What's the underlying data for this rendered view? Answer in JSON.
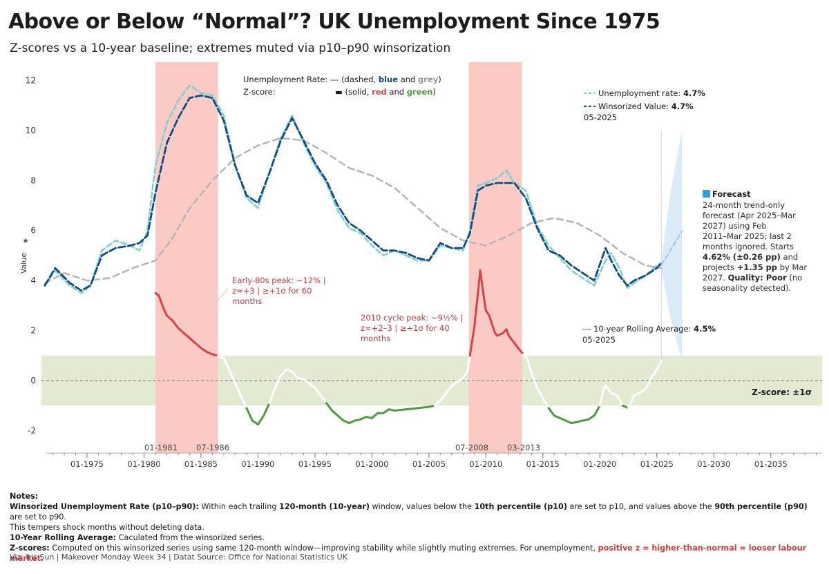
{
  "title": "Above or Below “Normal”? UK Unemployment Since 1975",
  "subtitle": "Z-scores vs a 10-year baseline; extremes muted via p10–p90 winsorization",
  "legend_top": {
    "line1_label": "Unemployment Rate:",
    "line1_dash": "---",
    "line1_open": "(dashed,",
    "line1_blue": "blue",
    "line1_and": "and",
    "line1_grey": "grey",
    "line1_close": ")",
    "line2_label": "Z-score:",
    "line2_dash": "▬",
    "line2_open": "(solid,",
    "line2_red": "red",
    "line2_and": "and",
    "line2_green": "green",
    "line2_close": ")"
  },
  "legend_right": {
    "unemp_label": "Unemployment rate:",
    "unemp_value": "4.7%",
    "wins_label": "Winsorized Value:",
    "wins_value": "4.7%",
    "date": "05-2025",
    "rolling_label": "--- 10-year Rolling Average:",
    "rolling_value": "4.5%",
    "rolling_date": "05-2025"
  },
  "forecast": {
    "heading": "Forecast",
    "lines": [
      "24-month trend-only",
      "forecast (Apr 2025–Mar",
      "2027) using Feb",
      "2011–Mar 2025; last 2",
      "months ignored. Starts"
    ],
    "line6_bold": "4.62% (±0.26 pp)",
    "line6_rest": " and",
    "line7_start": "projects ",
    "line7_bold": "+1.35 pp",
    "line7_rest": " by Mar",
    "line8_start": "2027. ",
    "line8_bold": "Quality: Poor",
    "line8_rest": " (no",
    "line9": "seasonality detected)."
  },
  "annotations": {
    "peak80_lines": [
      "Early-80s peak: ~12% |",
      "z≈+3 | ≥+1σ for 60",
      "months"
    ],
    "peak2010_lines": [
      "2010 cycle peak: ~9½% |",
      "z≈+2–3 | ≥+1σ for 40",
      "months"
    ],
    "zscore_band": "Z-score: ±1σ"
  },
  "period_labels": {
    "p1_start": "01-1981",
    "p1_end": "07-1986",
    "p2_start": "07-2008",
    "p2_end": "03-2013"
  },
  "y_axis_title": "Value",
  "notes": {
    "heading": "Notes:",
    "n1_label": "Winsorized Unemployment Rate (p10–p90):",
    "n1_t1": " Within each trailing ",
    "n1_b1": "120-month (10-year)",
    "n1_t2": " window, values below the ",
    "n1_b2": "10th percentile (p10)",
    "n1_t3": " are set to p10, and values above the ",
    "n1_b3": "90th percentile (p90)",
    "n1_t4": " are set to p90.",
    "n1_line2": "This tempers shock months without deleting data.",
    "n2_label": "10-Year Rolling Average:",
    "n2_text": " Caculated from the winsorized series.",
    "n3_label": "Z-scores:",
    "n3_text": " Computed on this winsorized series using same 120-month window—improving stability while slightly muting extremes. For unemployment, ",
    "n3_highlight": "positive z = higher-than-normal = looser labour market."
  },
  "credit": "Viz: Iris Sun | Makeover Monday Week 34 | Datat Source: Office for National Statistics UK",
  "colors": {
    "blue": "#0f4c81",
    "light_blue": "#7fcfcf",
    "grey": "#bcb3b3",
    "red": "#d6444a",
    "green": "#4f9a3f",
    "red_band": "#fccac4",
    "green_band": "#e3ead2"
  },
  "chart_data": {
    "type": "line",
    "x_axis": {
      "ticks": [
        "01-1975",
        "01-1980",
        "01-1985",
        "01-1990",
        "01-1995",
        "01-2000",
        "01-2005",
        "01-2010",
        "01-2015",
        "01-2020",
        "01-2025",
        "01-2030",
        "01-2035"
      ],
      "range": [
        1971,
        2039.5
      ]
    },
    "y_axis": {
      "ticks": [
        -2,
        0,
        2,
        4,
        6,
        8,
        10,
        12
      ],
      "range": [
        -2.9,
        12.4
      ]
    },
    "shaded_periods": [
      {
        "start": "01-1981",
        "end": "07-1986"
      },
      {
        "start": "07-2008",
        "end": "03-2013"
      }
    ],
    "zscore_band": [
      -1,
      1
    ],
    "series": [
      {
        "name": "Unemployment rate",
        "style": "dashed light blue",
        "points": [
          [
            1971.3,
            3.8
          ],
          [
            1972.2,
            4.4
          ],
          [
            1973.5,
            3.8
          ],
          [
            1974.5,
            3.5
          ],
          [
            1975.3,
            3.8
          ],
          [
            1976.3,
            5.2
          ],
          [
            1977.5,
            5.6
          ],
          [
            1978.8,
            5.4
          ],
          [
            1979.6,
            5.2
          ],
          [
            1980.3,
            6.0
          ],
          [
            1981.0,
            8.6
          ],
          [
            1982.0,
            10.3
          ],
          [
            1983.0,
            11.2
          ],
          [
            1984.0,
            11.8
          ],
          [
            1985.0,
            11.5
          ],
          [
            1986.0,
            11.4
          ],
          [
            1987.0,
            10.6
          ],
          [
            1988.0,
            8.6
          ],
          [
            1989.0,
            7.3
          ],
          [
            1990.0,
            6.9
          ],
          [
            1991.0,
            8.3
          ],
          [
            1992.0,
            9.7
          ],
          [
            1993.0,
            10.6
          ],
          [
            1994.0,
            9.5
          ],
          [
            1995.0,
            8.6
          ],
          [
            1996.0,
            7.9
          ],
          [
            1997.0,
            6.8
          ],
          [
            1998.0,
            6.1
          ],
          [
            1999.0,
            5.9
          ],
          [
            2000.0,
            5.4
          ],
          [
            2001.0,
            5.0
          ],
          [
            2002.0,
            5.2
          ],
          [
            2003.0,
            5.0
          ],
          [
            2004.0,
            4.8
          ],
          [
            2005.0,
            4.8
          ],
          [
            2006.0,
            5.4
          ],
          [
            2007.0,
            5.3
          ],
          [
            2008.0,
            5.2
          ],
          [
            2008.6,
            6.0
          ],
          [
            2009.3,
            7.8
          ],
          [
            2010.0,
            7.9
          ],
          [
            2011.0,
            8.1
          ],
          [
            2011.8,
            8.4
          ],
          [
            2012.5,
            7.9
          ],
          [
            2013.5,
            7.6
          ],
          [
            2014.5,
            6.2
          ],
          [
            2015.5,
            5.4
          ],
          [
            2016.5,
            4.9
          ],
          [
            2017.5,
            4.4
          ],
          [
            2018.5,
            4.1
          ],
          [
            2019.5,
            3.8
          ],
          [
            2020.5,
            4.8
          ],
          [
            2021.0,
            5.1
          ],
          [
            2021.7,
            4.5
          ],
          [
            2022.4,
            3.7
          ],
          [
            2023.0,
            3.9
          ],
          [
            2024.0,
            4.2
          ],
          [
            2025.0,
            4.6
          ],
          [
            2025.4,
            4.7
          ]
        ]
      },
      {
        "name": "Winsorized Value",
        "style": "dashed blue",
        "points": [
          [
            1971.3,
            3.8
          ],
          [
            1972.2,
            4.5
          ],
          [
            1973.5,
            3.9
          ],
          [
            1974.5,
            3.6
          ],
          [
            1975.3,
            3.8
          ],
          [
            1976.3,
            5.0
          ],
          [
            1977.5,
            5.3
          ],
          [
            1978.8,
            5.4
          ],
          [
            1979.6,
            5.5
          ],
          [
            1980.3,
            5.8
          ],
          [
            1981.0,
            7.5
          ],
          [
            1982.0,
            9.5
          ],
          [
            1983.0,
            10.5
          ],
          [
            1984.0,
            11.3
          ],
          [
            1985.0,
            11.4
          ],
          [
            1986.0,
            11.3
          ],
          [
            1987.0,
            10.4
          ],
          [
            1988.0,
            8.6
          ],
          [
            1989.0,
            7.4
          ],
          [
            1990.0,
            7.1
          ],
          [
            1991.0,
            8.3
          ],
          [
            1992.0,
            9.6
          ],
          [
            1993.0,
            10.5
          ],
          [
            1994.0,
            9.6
          ],
          [
            1995.0,
            8.7
          ],
          [
            1996.0,
            8.0
          ],
          [
            1997.0,
            7.0
          ],
          [
            1998.0,
            6.3
          ],
          [
            1999.0,
            6.0
          ],
          [
            2000.0,
            5.6
          ],
          [
            2001.0,
            5.2
          ],
          [
            2002.0,
            5.2
          ],
          [
            2003.0,
            5.1
          ],
          [
            2004.0,
            4.9
          ],
          [
            2005.0,
            4.8
          ],
          [
            2006.0,
            5.5
          ],
          [
            2007.0,
            5.3
          ],
          [
            2008.0,
            5.3
          ],
          [
            2008.6,
            5.9
          ],
          [
            2009.3,
            7.6
          ],
          [
            2010.0,
            7.8
          ],
          [
            2011.0,
            7.9
          ],
          [
            2011.8,
            7.9
          ],
          [
            2012.5,
            7.9
          ],
          [
            2013.5,
            7.3
          ],
          [
            2014.5,
            6.1
          ],
          [
            2015.5,
            5.2
          ],
          [
            2016.5,
            5.0
          ],
          [
            2017.5,
            4.6
          ],
          [
            2018.5,
            4.3
          ],
          [
            2019.5,
            4.0
          ],
          [
            2020.5,
            5.3
          ],
          [
            2021.0,
            4.8
          ],
          [
            2021.7,
            4.2
          ],
          [
            2022.4,
            3.8
          ],
          [
            2023.0,
            4.0
          ],
          [
            2024.0,
            4.2
          ],
          [
            2025.0,
            4.5
          ],
          [
            2025.4,
            4.7
          ]
        ]
      },
      {
        "name": "10-year Rolling Average",
        "style": "dashed grey",
        "points": [
          [
            1971.3,
            3.9
          ],
          [
            1973.0,
            4.3
          ],
          [
            1975.0,
            4.0
          ],
          [
            1977.0,
            4.1
          ],
          [
            1979.0,
            4.5
          ],
          [
            1981.0,
            4.8
          ],
          [
            1982.5,
            5.7
          ],
          [
            1984.0,
            6.9
          ],
          [
            1986.0,
            8.0
          ],
          [
            1988.0,
            8.9
          ],
          [
            1990.0,
            9.4
          ],
          [
            1992.0,
            9.7
          ],
          [
            1994.0,
            9.6
          ],
          [
            1996.0,
            9.1
          ],
          [
            1998.0,
            8.5
          ],
          [
            2000.0,
            8.2
          ],
          [
            2002.0,
            7.7
          ],
          [
            2004.0,
            6.9
          ],
          [
            2006.0,
            6.1
          ],
          [
            2008.0,
            5.6
          ],
          [
            2010.0,
            5.4
          ],
          [
            2012.0,
            5.8
          ],
          [
            2014.0,
            6.3
          ],
          [
            2016.0,
            6.5
          ],
          [
            2018.0,
            6.3
          ],
          [
            2020.0,
            5.8
          ],
          [
            2022.0,
            5.1
          ],
          [
            2024.0,
            4.6
          ],
          [
            2025.4,
            4.5
          ]
        ]
      },
      {
        "name": "Forecast",
        "style": "dashed light blue",
        "points": [
          [
            2025.4,
            4.62
          ],
          [
            2027.2,
            5.97
          ]
        ],
        "band_upper": [
          [
            2025.4,
            4.9
          ],
          [
            2026.2,
            7.5
          ],
          [
            2027.2,
            10.0
          ]
        ],
        "band_lower": [
          [
            2025.4,
            4.4
          ],
          [
            2026.2,
            2.5
          ],
          [
            2027.2,
            0.8
          ]
        ]
      },
      {
        "name": "Z-score",
        "style": "solid red/white/green",
        "points": [
          [
            1981.0,
            3.5
          ],
          [
            1981.3,
            3.4
          ],
          [
            1981.7,
            2.9
          ],
          [
            1982.0,
            2.6
          ],
          [
            1982.5,
            2.4
          ],
          [
            1983.0,
            2.1
          ],
          [
            1983.5,
            1.9
          ],
          [
            1984.0,
            1.7
          ],
          [
            1984.5,
            1.5
          ],
          [
            1985.0,
            1.3
          ],
          [
            1985.5,
            1.15
          ],
          [
            1986.0,
            1.05
          ],
          [
            1986.5,
            1.0
          ],
          [
            1987.0,
            0.9
          ],
          [
            1987.5,
            0.4
          ],
          [
            1988.0,
            -0.1
          ],
          [
            1988.5,
            -0.6
          ],
          [
            1989.0,
            -1.1
          ],
          [
            1989.5,
            -1.6
          ],
          [
            1990.0,
            -1.75
          ],
          [
            1990.5,
            -1.4
          ],
          [
            1991.0,
            -0.9
          ],
          [
            1991.5,
            -0.3
          ],
          [
            1992.0,
            0.2
          ],
          [
            1992.5,
            0.45
          ],
          [
            1993.0,
            0.35
          ],
          [
            1993.5,
            0.1
          ],
          [
            1994.0,
            0.05
          ],
          [
            1994.5,
            -0.1
          ],
          [
            1995.0,
            -0.3
          ],
          [
            1995.5,
            -0.6
          ],
          [
            1996.0,
            -0.9
          ],
          [
            1996.5,
            -1.2
          ],
          [
            1997.0,
            -1.4
          ],
          [
            1997.5,
            -1.6
          ],
          [
            1998.0,
            -1.7
          ],
          [
            1998.5,
            -1.6
          ],
          [
            1999.0,
            -1.55
          ],
          [
            1999.5,
            -1.45
          ],
          [
            2000.0,
            -1.5
          ],
          [
            2000.5,
            -1.3
          ],
          [
            2001.0,
            -1.3
          ],
          [
            2001.5,
            -1.15
          ],
          [
            2002.0,
            -1.2
          ],
          [
            2003.0,
            -1.15
          ],
          [
            2004.0,
            -1.1
          ],
          [
            2005.0,
            -1.05
          ],
          [
            2005.5,
            -1.0
          ],
          [
            2006.0,
            -0.8
          ],
          [
            2006.5,
            -0.5
          ],
          [
            2007.0,
            -0.2
          ],
          [
            2007.5,
            -0.05
          ],
          [
            2008.0,
            0.1
          ],
          [
            2008.4,
            0.4
          ],
          [
            2008.6,
            1.0
          ],
          [
            2009.0,
            2.2
          ],
          [
            2009.3,
            3.5
          ],
          [
            2009.5,
            4.4
          ],
          [
            2009.8,
            3.4
          ],
          [
            2010.0,
            2.8
          ],
          [
            2010.3,
            2.6
          ],
          [
            2010.5,
            2.3
          ],
          [
            2010.8,
            1.9
          ],
          [
            2011.0,
            1.8
          ],
          [
            2011.5,
            1.9
          ],
          [
            2011.8,
            2.05
          ],
          [
            2012.0,
            1.8
          ],
          [
            2012.5,
            1.5
          ],
          [
            2013.0,
            1.2
          ],
          [
            2013.3,
            1.05
          ],
          [
            2013.6,
            0.9
          ],
          [
            2014.0,
            0.3
          ],
          [
            2014.5,
            -0.3
          ],
          [
            2015.0,
            -0.7
          ],
          [
            2015.5,
            -1.1
          ],
          [
            2016.0,
            -1.4
          ],
          [
            2016.5,
            -1.5
          ],
          [
            2017.0,
            -1.6
          ],
          [
            2017.5,
            -1.7
          ],
          [
            2018.0,
            -1.65
          ],
          [
            2018.5,
            -1.6
          ],
          [
            2019.0,
            -1.55
          ],
          [
            2019.5,
            -1.4
          ],
          [
            2020.0,
            -1.0
          ],
          [
            2020.3,
            -0.4
          ],
          [
            2020.5,
            -0.2
          ],
          [
            2021.0,
            -0.5
          ],
          [
            2021.5,
            -0.6
          ],
          [
            2022.0,
            -1.0
          ],
          [
            2022.5,
            -1.1
          ],
          [
            2022.8,
            -0.8
          ],
          [
            2023.0,
            -0.6
          ],
          [
            2023.5,
            -0.5
          ],
          [
            2024.0,
            -0.35
          ],
          [
            2024.5,
            0.1
          ],
          [
            2025.0,
            0.45
          ],
          [
            2025.4,
            0.8
          ]
        ]
      }
    ]
  }
}
